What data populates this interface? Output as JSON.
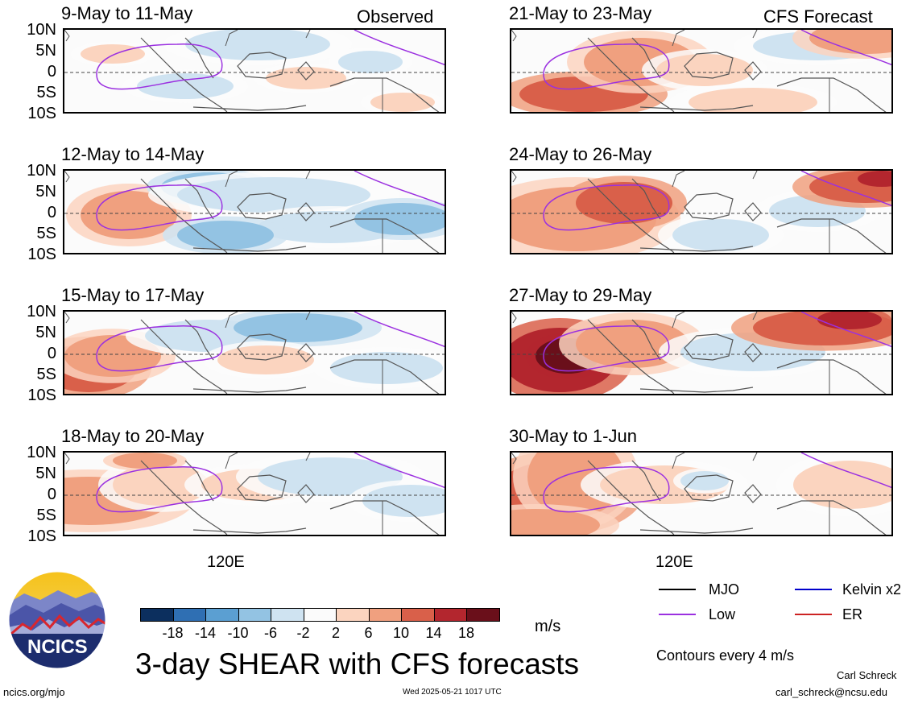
{
  "panels_left": [
    {
      "title": "9-May to 11-May",
      "label": "Observed"
    },
    {
      "title": "12-May to 14-May",
      "label": ""
    },
    {
      "title": "15-May to 17-May",
      "label": ""
    },
    {
      "title": "18-May to 20-May",
      "label": ""
    }
  ],
  "panels_right": [
    {
      "title": "21-May to 23-May",
      "label": "CFS Forecast"
    },
    {
      "title": "24-May to 26-May",
      "label": ""
    },
    {
      "title": "27-May to 29-May",
      "label": ""
    },
    {
      "title": "30-May to 1-Jun",
      "label": ""
    }
  ],
  "lat_ticks": [
    "10N",
    "5N",
    "0",
    "5S",
    "10S"
  ],
  "x_tick": "120E",
  "colorbar": {
    "labels": [
      "-18",
      "-14",
      "-10",
      "-6",
      "-2",
      "2",
      "6",
      "10",
      "14",
      "18"
    ],
    "colors": [
      "#0c2f5e",
      "#2f6fb3",
      "#5b9fd2",
      "#93c3e3",
      "#cfe3f1",
      "#fbfbfb",
      "#fbd4bf",
      "#f0a07f",
      "#d9604a",
      "#b3262e",
      "#6a0f1a"
    ],
    "unit": "m/s"
  },
  "legend": {
    "items": [
      {
        "label": "MJO",
        "color": "#000000"
      },
      {
        "label": "Kelvin x2",
        "color": "#0000cc"
      },
      {
        "label": "Low",
        "color": "#9b30e0"
      },
      {
        "label": "ER",
        "color": "#cc2222"
      }
    ],
    "contours": "Contours every 4 m/s"
  },
  "logo_text": "NCICS",
  "main_title": "3-day SHEAR with CFS forecasts",
  "footer": {
    "url": "ncics.org/mjo",
    "timestamp": "Wed 2025-05-21 1017 UTC",
    "author": "Carl Schreck",
    "email": "carl_schreck@ncsu.edu"
  },
  "chart_data": {
    "type": "heatmap",
    "variable": "3-day SHEAR",
    "units": "m/s",
    "lat_range": [
      "10S",
      "10N"
    ],
    "colorbar_levels": [
      -18,
      -14,
      -10,
      -6,
      -2,
      2,
      6,
      10,
      14,
      18
    ],
    "panels": [
      {
        "period": "9-May to 11-May",
        "source": "Observed"
      },
      {
        "period": "12-May to 14-May",
        "source": "Observed"
      },
      {
        "period": "15-May to 17-May",
        "source": "Observed"
      },
      {
        "period": "18-May to 20-May",
        "source": "Observed"
      },
      {
        "period": "21-May to 23-May",
        "source": "CFS Forecast"
      },
      {
        "period": "24-May to 26-May",
        "source": "CFS Forecast"
      },
      {
        "period": "27-May to 29-May",
        "source": "CFS Forecast"
      },
      {
        "period": "30-May to 1-Jun",
        "source": "CFS Forecast"
      }
    ],
    "contour_interval": "4 m/s"
  }
}
